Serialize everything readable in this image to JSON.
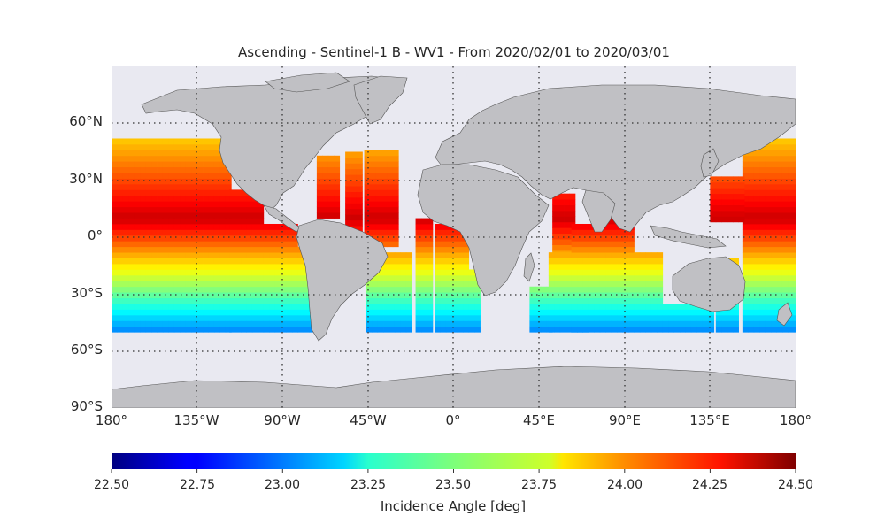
{
  "title": "Ascending - Sentinel-1 B - WV1 - From 2020/02/01 to 2020/03/01",
  "lat_labels": [
    "60°N",
    "30°N",
    "0°",
    "30°S",
    "60°S",
    "90°S"
  ],
  "lon_labels": [
    "180°",
    "135°W",
    "90°W",
    "45°W",
    "0°",
    "45°E",
    "90°E",
    "135°E",
    "180°"
  ],
  "colorbar": {
    "label": "Incidence Angle [deg]",
    "ticks": [
      "22.50",
      "22.75",
      "23.00",
      "23.25",
      "23.50",
      "23.75",
      "24.00",
      "24.25",
      "24.50"
    ],
    "min": 22.5,
    "max": 24.5,
    "colormap": "jet"
  },
  "colors": {
    "ocean": "#e9e9f1",
    "land": "#c0c0c4",
    "coast": "#555555",
    "grid": "#333333"
  },
  "map_extent": {
    "lon": [
      -180,
      180
    ],
    "lat": [
      -90,
      90
    ]
  },
  "data_coverage": {
    "lat": [
      -50,
      50
    ],
    "note_value_low_at": -50,
    "note_value_high_at": 10
  }
}
